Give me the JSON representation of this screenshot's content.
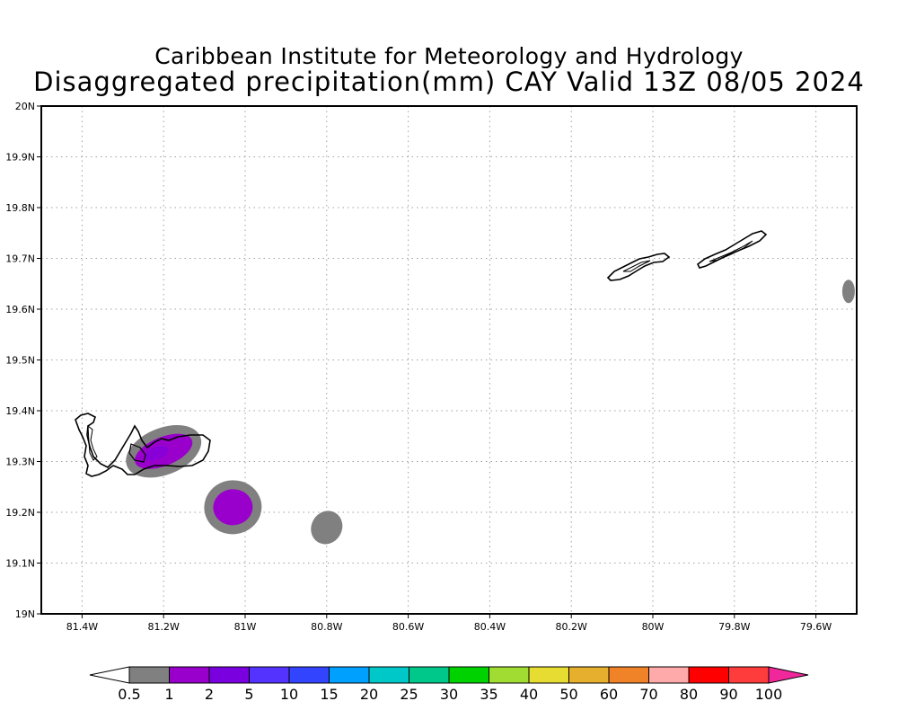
{
  "title": {
    "line1": "Caribbean Institute for Meteorology and Hydrology",
    "line2": "Disaggregated precipitation(mm) CAY Valid 13Z 08/05 2024"
  },
  "map": {
    "lon_range": [
      -81.5,
      -79.5
    ],
    "lat_range": [
      19.0,
      20.0
    ],
    "lat_ticks": [
      {
        "value": 20.0,
        "label": "20N"
      },
      {
        "value": 19.9,
        "label": "19.9N"
      },
      {
        "value": 19.8,
        "label": "19.8N"
      },
      {
        "value": 19.7,
        "label": "19.7N"
      },
      {
        "value": 19.6,
        "label": "19.6N"
      },
      {
        "value": 19.5,
        "label": "19.5N"
      },
      {
        "value": 19.4,
        "label": "19.4N"
      },
      {
        "value": 19.3,
        "label": "19.3N"
      },
      {
        "value": 19.2,
        "label": "19.2N"
      },
      {
        "value": 19.1,
        "label": "19.1N"
      },
      {
        "value": 19.0,
        "label": "19N"
      }
    ],
    "lon_ticks": [
      {
        "value": -81.4,
        "label": "81.4W"
      },
      {
        "value": -81.2,
        "label": "81.2W"
      },
      {
        "value": -81.0,
        "label": "81W"
      },
      {
        "value": -80.8,
        "label": "80.8W"
      },
      {
        "value": -80.6,
        "label": "80.6W"
      },
      {
        "value": -80.4,
        "label": "80.4W"
      },
      {
        "value": -80.2,
        "label": "80.2W"
      },
      {
        "value": -80.0,
        "label": "80W"
      },
      {
        "value": -79.8,
        "label": "79.8W"
      },
      {
        "value": -79.6,
        "label": "79.6W"
      }
    ],
    "grid": true,
    "grid_color": "#a0a0a0",
    "coastline_color": "#000000"
  },
  "precip_areas": [
    {
      "name": "grand-cayman-cell",
      "lon": -81.2,
      "lat": 19.32,
      "level_outer": "0.5-1",
      "level_inner": "1-2"
    },
    {
      "name": "southeast-cell",
      "lon": -81.03,
      "lat": 19.21,
      "level_outer": "0.5-1",
      "level_inner": "1-2"
    },
    {
      "name": "south-cell",
      "lon": -80.8,
      "lat": 19.17,
      "level_outer": "0.5-1"
    },
    {
      "name": "east-edge-cell",
      "lon": -79.52,
      "lat": 19.635,
      "level_outer": "0.5-1"
    }
  ],
  "colorbar": {
    "labels": [
      "0.5",
      "1",
      "2",
      "5",
      "10",
      "15",
      "20",
      "25",
      "30",
      "35",
      "40",
      "50",
      "60",
      "70",
      "80",
      "90",
      "100"
    ],
    "colors": [
      "#808080",
      "#9900cc",
      "#7a00e0",
      "#5533ff",
      "#3344ff",
      "#00a0ff",
      "#00c8c8",
      "#00c88a",
      "#00d200",
      "#a0dc32",
      "#e6dc32",
      "#e6af2d",
      "#f08228",
      "#ffaaaa",
      "#ff0000",
      "#ff3c3c"
    ],
    "low_extend_color": "#ffffff",
    "high_extend_color": "#f0289b"
  }
}
